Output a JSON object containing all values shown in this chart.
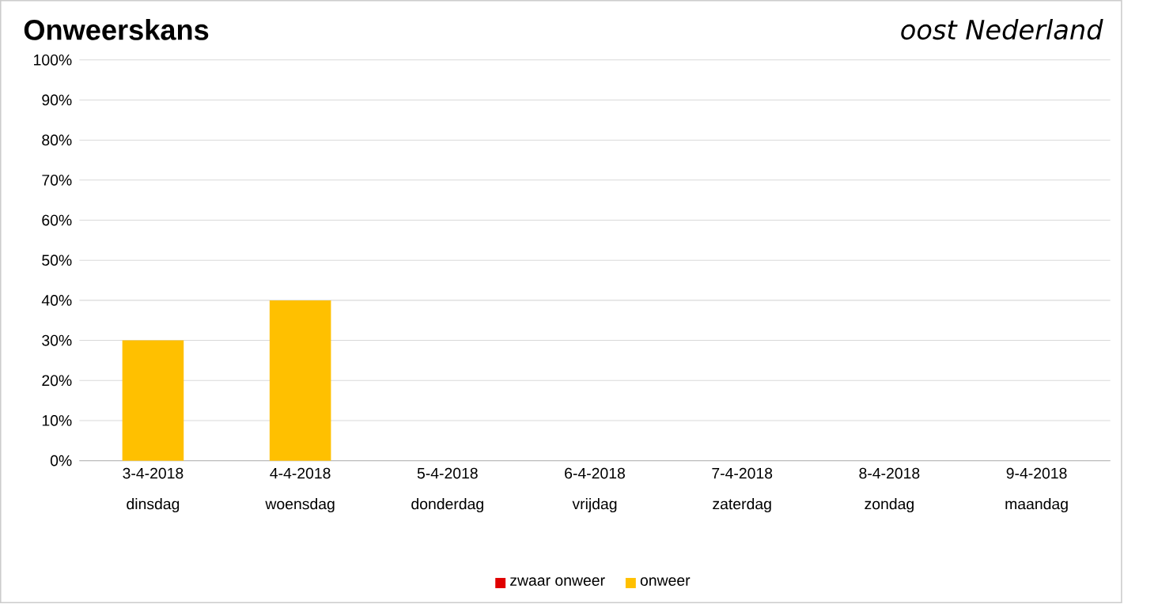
{
  "chart_data": {
    "type": "bar",
    "title": "Onweerskans",
    "subtitle": "oost Nederland",
    "categories": [
      "3-4-2018 dinsdag",
      "4-4-2018 woensdag",
      "5-4-2018 donderdag",
      "6-4-2018 vrijdag",
      "7-4-2018 zaterdag",
      "8-4-2018 zondag",
      "9-4-2018 maandag"
    ],
    "series": [
      {
        "name": "zwaar onweer",
        "color": "#e00000",
        "values": [
          0,
          0,
          0,
          0,
          0,
          0,
          0
        ]
      },
      {
        "name": "onweer",
        "color": "#ffc000",
        "values": [
          30,
          40,
          0,
          0,
          0,
          0,
          0
        ]
      }
    ],
    "ylim": [
      0,
      100
    ],
    "yticks": [
      {
        "value": 0,
        "label": "0%"
      },
      {
        "value": 10,
        "label": "10%"
      },
      {
        "value": 20,
        "label": "20%"
      },
      {
        "value": 30,
        "label": "30%"
      },
      {
        "value": 40,
        "label": "40%"
      },
      {
        "value": 50,
        "label": "50%"
      },
      {
        "value": 60,
        "label": "60%"
      },
      {
        "value": 70,
        "label": "70%"
      },
      {
        "value": 80,
        "label": "80%"
      },
      {
        "value": 90,
        "label": "90%"
      },
      {
        "value": 100,
        "label": "100%"
      }
    ],
    "grid": "y",
    "legend": "bottom"
  }
}
